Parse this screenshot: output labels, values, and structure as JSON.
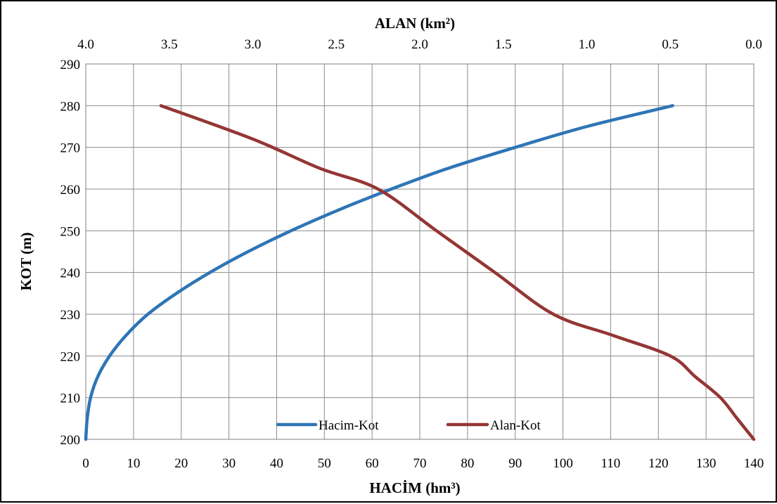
{
  "chart_data": {
    "type": "line",
    "title": "",
    "x_top_label": "ALAN (km²)",
    "xlabel": "HACİM (hm³)",
    "ylabel": "KOT (m)",
    "x_bottom_range": [
      0,
      140
    ],
    "x_bottom_ticks": [
      "0",
      "10",
      "20",
      "30",
      "40",
      "50",
      "60",
      "70",
      "80",
      "90",
      "100",
      "110",
      "120",
      "130",
      "140"
    ],
    "x_top_range": [
      4.0,
      0.0
    ],
    "x_top_ticks": [
      "4.0",
      "3.5",
      "3.0",
      "2.5",
      "2.0",
      "1.5",
      "1.0",
      "0.5",
      "0.0"
    ],
    "y_range": [
      200,
      290
    ],
    "y_ticks": [
      "200",
      "210",
      "220",
      "230",
      "240",
      "250",
      "260",
      "270",
      "280",
      "290"
    ],
    "grid": true,
    "legend_position": "bottom-center",
    "series": [
      {
        "name": "Hacim-Kot",
        "axis": "bottom",
        "color": "#2E75B6",
        "points": [
          [
            0,
            200
          ],
          [
            0.3,
            205
          ],
          [
            1,
            210
          ],
          [
            2.5,
            215
          ],
          [
            5,
            220
          ],
          [
            8.5,
            225
          ],
          [
            13,
            230
          ],
          [
            19,
            235
          ],
          [
            26,
            240
          ],
          [
            34,
            245
          ],
          [
            43,
            250
          ],
          [
            53,
            255
          ],
          [
            64,
            260
          ],
          [
            76,
            265
          ],
          [
            90,
            270
          ],
          [
            105,
            275
          ],
          [
            123,
            280
          ]
        ]
      },
      {
        "name": "Alan-Kot",
        "axis": "top",
        "color": "#943634",
        "points": [
          [
            0.0,
            200
          ],
          [
            0.1,
            205
          ],
          [
            0.2,
            210
          ],
          [
            0.35,
            215
          ],
          [
            0.5,
            220
          ],
          [
            0.85,
            225
          ],
          [
            1.2,
            230
          ],
          [
            1.55,
            240
          ],
          [
            1.9,
            250
          ],
          [
            2.25,
            260
          ],
          [
            2.6,
            265
          ],
          [
            3.0,
            272
          ],
          [
            3.55,
            280
          ]
        ]
      }
    ]
  }
}
